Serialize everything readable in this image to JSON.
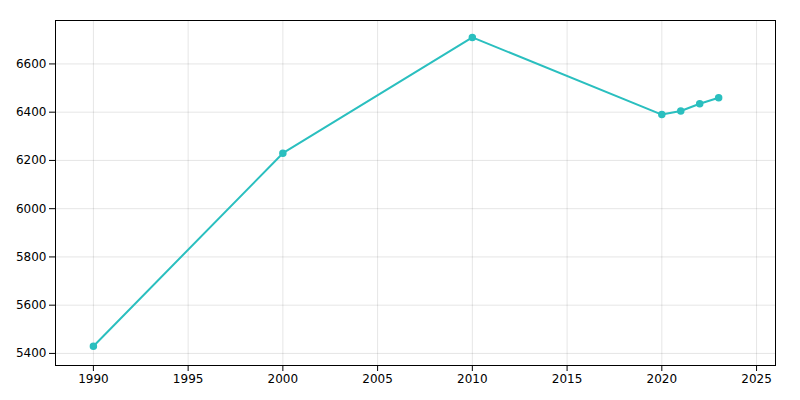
{
  "chart_data": {
    "type": "line",
    "x": [
      1990,
      2000,
      2010,
      2020,
      2021,
      2022,
      2023
    ],
    "values": [
      5430,
      6230,
      6710,
      6390,
      6405,
      6435,
      6460
    ],
    "color": "#2abfbf",
    "marker": "circle",
    "xlim": [
      1988,
      2026
    ],
    "ylim": [
      5350,
      6780
    ],
    "xticks": [
      1990,
      1995,
      2000,
      2005,
      2010,
      2015,
      2020,
      2025
    ],
    "yticks": [
      5400,
      5600,
      5800,
      6000,
      6200,
      6400,
      6600
    ],
    "grid": true
  }
}
